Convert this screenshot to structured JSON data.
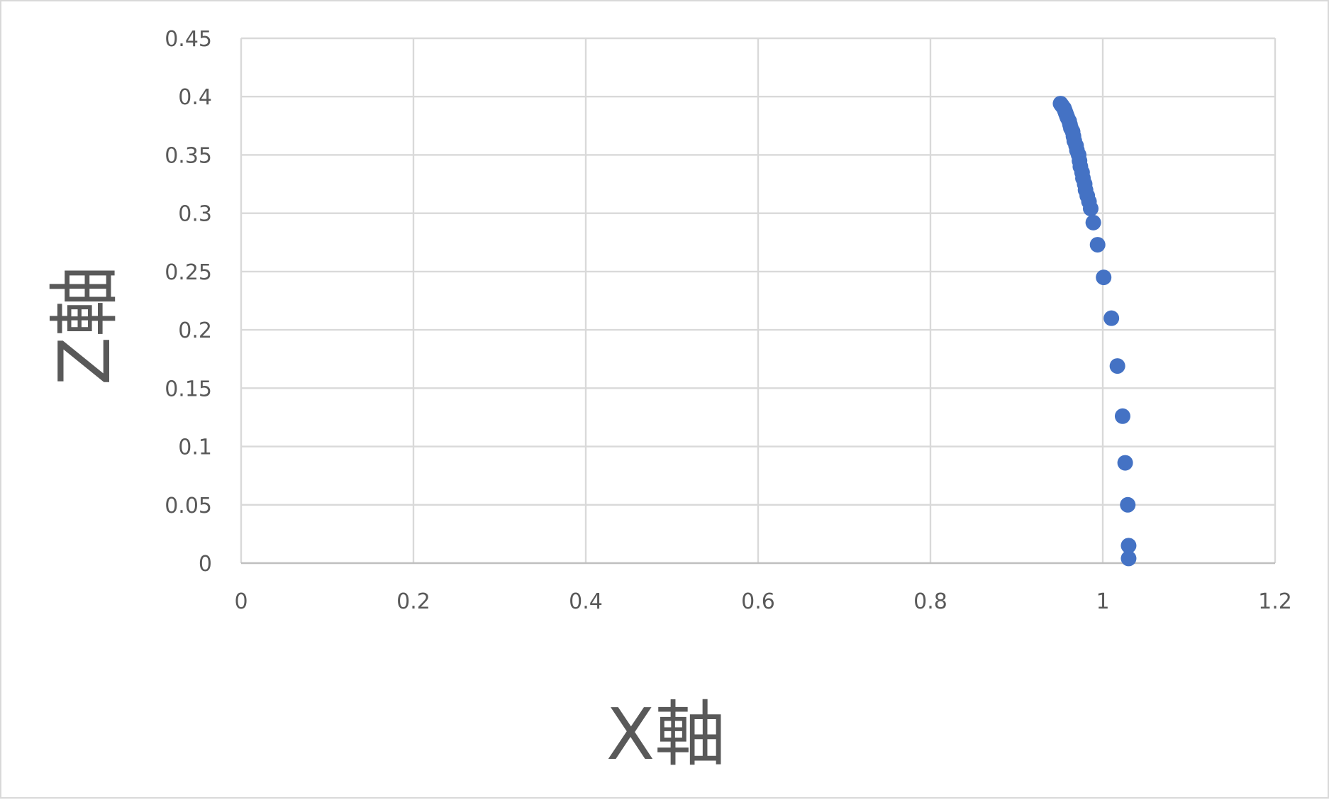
{
  "chart_data": {
    "type": "scatter",
    "title": "",
    "xlabel": "X軸",
    "ylabel": "Z軸",
    "xlim": [
      0,
      1.2
    ],
    "ylim": [
      0,
      0.45
    ],
    "x_ticks": [
      "0",
      "0.2",
      "0.4",
      "0.6",
      "0.8",
      "1",
      "1.2"
    ],
    "y_ticks": [
      "0",
      "0.05",
      "0.1",
      "0.15",
      "0.2",
      "0.25",
      "0.3",
      "0.35",
      "0.4",
      "0.45"
    ],
    "grid": true,
    "legend": "none",
    "marker_color": "#4472C4",
    "series": [
      {
        "x": [
          1.03,
          1.03,
          1.029,
          1.026,
          1.023,
          1.017,
          1.01,
          1.001,
          0.994,
          0.989,
          0.986,
          0.984,
          0.982,
          0.98,
          0.979,
          0.977,
          0.976,
          0.974,
          0.973,
          0.972,
          0.97,
          0.969,
          0.967,
          0.966,
          0.965,
          0.963,
          0.962,
          0.961,
          0.959,
          0.958,
          0.957,
          0.956,
          0.955,
          0.953,
          0.952,
          0.951
        ],
        "y": [
          0.004,
          0.015,
          0.05,
          0.086,
          0.126,
          0.169,
          0.21,
          0.245,
          0.273,
          0.292,
          0.304,
          0.31,
          0.315,
          0.32,
          0.325,
          0.33,
          0.335,
          0.34,
          0.345,
          0.35,
          0.354,
          0.358,
          0.362,
          0.366,
          0.37,
          0.373,
          0.376,
          0.379,
          0.382,
          0.384,
          0.386,
          0.388,
          0.39,
          0.392,
          0.393,
          0.394
        ]
      }
    ]
  }
}
